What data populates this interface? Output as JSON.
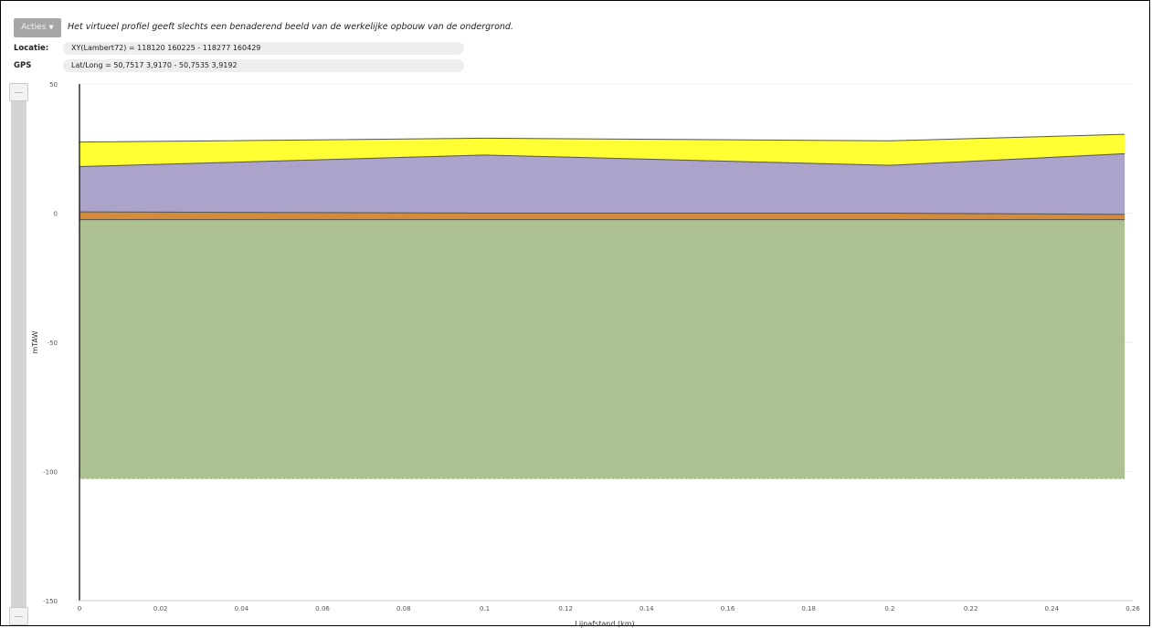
{
  "toolbar": {
    "actions_label": "Acties",
    "disclaimer": "Het virtueel profiel geeft slechts een benaderend beeld van de werkelijke opbouw van de ondergrond."
  },
  "info": {
    "location_label": "Locatie:",
    "location_value": "XY(Lambert72) = 118120 160225 - 118277 160429",
    "gps_label": "GPS",
    "gps_value": "Lat/Long = 50,7517 3,9170 - 50,7535 3,9192"
  },
  "colors": {
    "layer1": "#ffff33",
    "layer2": "#aba3c9",
    "layer3": "#d48b3a",
    "layer4": "#adc193",
    "axis": "#000000",
    "grid": "#eeeeee"
  },
  "chart_data": {
    "type": "area",
    "title": "",
    "xlabel": "Lijnafstand (km)",
    "ylabel": "mTAW",
    "xlim": [
      0,
      0.26
    ],
    "ylim": [
      -150,
      50
    ],
    "x_ticks": [
      "0",
      "0.02",
      "0.04",
      "0.06",
      "0.08",
      "0.1",
      "0.12",
      "0.14",
      "0.16",
      "0.18",
      "0.2",
      "0.22",
      "0.24",
      "0.26"
    ],
    "y_ticks": [
      "50",
      "0",
      "-50",
      "-100",
      "-150"
    ],
    "boundaries_x": [
      0,
      0.1,
      0.2,
      0.258
    ],
    "layers": [
      {
        "name": "",
        "color": "#ffff33",
        "top": [
          27.5,
          29.0,
          28.0,
          30.5
        ],
        "bottom": [
          18.0,
          22.5,
          18.5,
          23.0
        ]
      },
      {
        "name": "",
        "color": "#aba3c9",
        "top": [
          18.0,
          22.5,
          18.5,
          23.0
        ],
        "bottom": [
          0.5,
          0.0,
          0.0,
          -0.5
        ]
      },
      {
        "name": "",
        "color": "#d48b3a",
        "top": [
          0.5,
          0.0,
          0.0,
          -0.5
        ],
        "bottom": [
          -2.5,
          -2.5,
          -2.5,
          -2.5
        ]
      },
      {
        "name": "",
        "color": "#adc193",
        "top": [
          -2.5,
          -2.5,
          -2.5,
          -2.5
        ],
        "bottom": [
          -103,
          -103,
          -103,
          -103
        ]
      }
    ],
    "grid": true,
    "legend": "none"
  }
}
